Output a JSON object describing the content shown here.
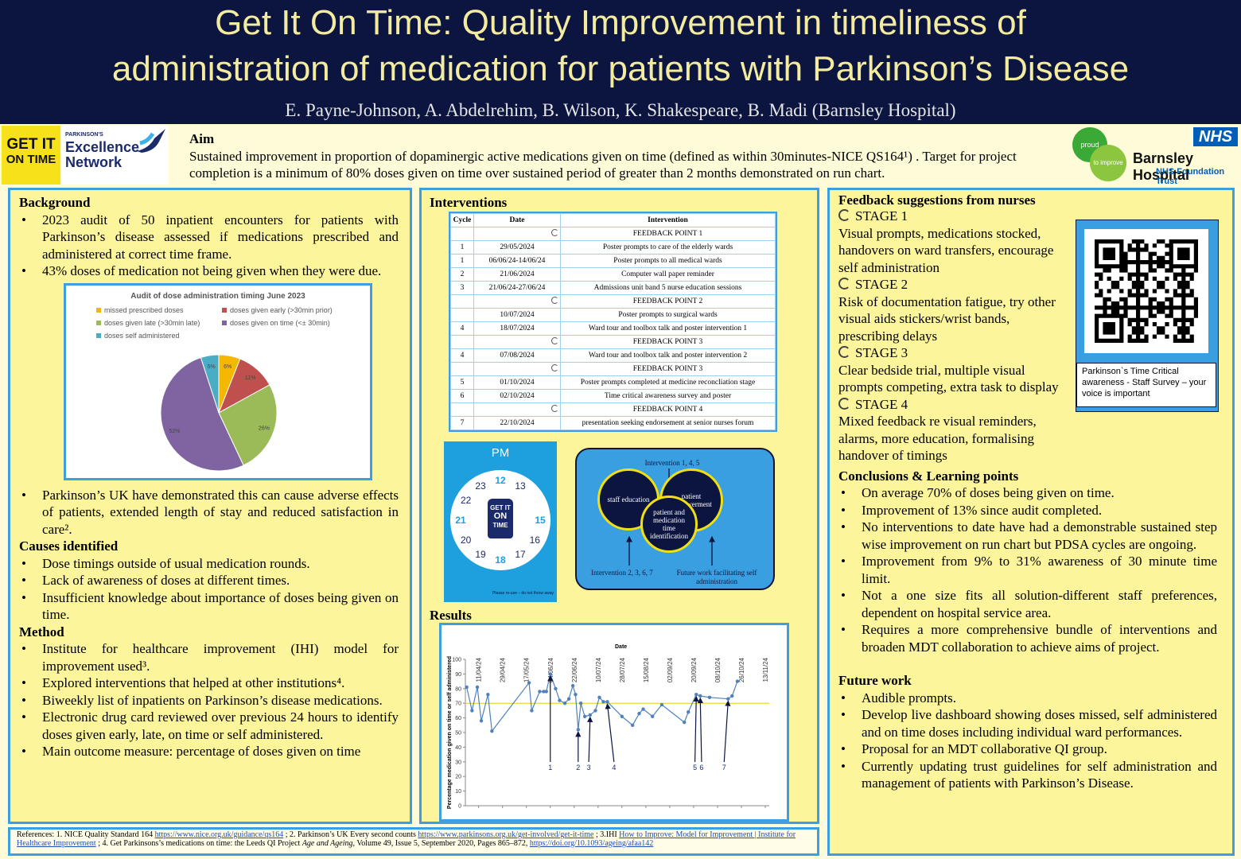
{
  "header": {
    "title_lines": [
      "Get It On Time: Quality Improvement in timeliness of",
      "administration of medication for patients with Parkinson’s Disease"
    ],
    "authors": "E. Payne-Johnson, A. Abdelrehim, B. Wilson, K. Shakespeare, B. Madi (Barnsley Hospital)"
  },
  "logos": {
    "get_it_lines": [
      "GET IT",
      "ON TIME"
    ],
    "pen_top": "PARKINSON'S",
    "pen_lines": [
      "Excellence",
      "Network"
    ],
    "proud": "proud",
    "to_improve": "to improve",
    "nhs": "NHS",
    "hospital": "Barnsley Hospital",
    "trust": "NHS Foundation Trust"
  },
  "aim": {
    "heading": "Aim",
    "text": "Sustained improvement in proportion of dopaminergic active medications given on time (defined as within 30minutes-NICE QS164¹) .  Target for project completion is a minimum of  80% doses given on time over sustained period of  greater than 2 months demonstrated on run chart."
  },
  "background": {
    "heading": "Background",
    "bullets_1": [
      "2023 audit of 50 inpatient encounters for patients with Parkinson’s disease assessed if medications prescribed and administered at correct time frame.",
      "43% doses of medication not being given when they were due."
    ],
    "bullets_2": [
      "Parkinson’s UK have demonstrated this can cause adverse effects of patients, extended length of stay and reduced satisfaction in care²."
    ]
  },
  "causes": {
    "heading": "Causes identified",
    "bullets": [
      "Dose timings outside of usual medication rounds.",
      "Lack of awareness of doses at different times.",
      "Insufficient knowledge about importance of doses being given on time."
    ]
  },
  "method": {
    "heading": "Method",
    "bullets": [
      "Institute for healthcare improvement (IHI) model for improvement used³.",
      "Explored interventions that helped at other institutions⁴.",
      "Biweekly list of inpatients on Parkinson’s disease medications.",
      "Electronic drug card reviewed over previous 24 hours to identify doses given early, late, on time or self administered.",
      "Main outcome measure: percentage of doses given on time"
    ]
  },
  "interventions": {
    "heading": "Interventions",
    "columns": [
      "Cycle",
      "Date",
      "Intervention"
    ],
    "rows": [
      {
        "feedback": "FEEDBACK POINT 1"
      },
      {
        "cycle": "1",
        "date": "29/05/2024",
        "intervention": "Poster prompts to care of the elderly wards"
      },
      {
        "cycle": "1",
        "date": "06/06/24-14/06/24",
        "intervention": "Poster prompts to all medical wards"
      },
      {
        "cycle": "2",
        "date": "21/06/2024",
        "intervention": "Computer wall paper reminder"
      },
      {
        "cycle": "3",
        "date": "21/06/24-27/06/24",
        "intervention": "Admissions unit band 5 nurse education sessions"
      },
      {
        "feedback": "FEEDBACK POINT 2"
      },
      {
        "date": "10/07/2024",
        "intervention": "Poster prompts to surgical wards"
      },
      {
        "cycle": "4",
        "date": "18/07/2024",
        "intervention": "Ward tour and toolbox talk and poster intervention 1"
      },
      {
        "feedback": "FEEDBACK POINT 3"
      },
      {
        "cycle": "4",
        "date": "07/08/2024",
        "intervention": "Ward tour and toolbox talk and poster intervention 2"
      },
      {
        "feedback": "FEEDBACK POINT 3"
      },
      {
        "cycle": "5",
        "date": "01/10/2024",
        "intervention": "Poster prompts completed at medicine reconcliation stage"
      },
      {
        "cycle": "6",
        "date": "02/10/2024",
        "intervention": "Time critical awareness survey and poster"
      },
      {
        "feedback": "FEEDBACK POINT 4"
      },
      {
        "cycle": "7",
        "date": "22/10/2024",
        "intervention": "presentation seeking endorsement at senior nurses forum"
      }
    ]
  },
  "clock": {
    "period": "PM",
    "hours": [
      "12",
      "13",
      "15",
      "16",
      "17",
      "18",
      "19",
      "20",
      "21",
      "22",
      "23"
    ],
    "bottle_lines": [
      "GET IT",
      "ON",
      "TIME"
    ],
    "note": "Please re-use – do not throw away"
  },
  "diagram": {
    "top_label": "Intervention 1, 4, 5",
    "circles": [
      "staff education",
      "patient empowerment",
      "patient and medication time identification"
    ],
    "bottom_left": "Intervention 2, 3, 6, 7",
    "bottom_right": "Future work facilitating self administration"
  },
  "results": {
    "heading": "Results"
  },
  "chart_data": [
    {
      "type": "pie",
      "title": "Audit of dose administration timing June 2023",
      "categories": [
        "missed prescribed doses",
        "doses given early (>30min prior)",
        "doses given late (>30min late)",
        "doses given on time (<± 30min)",
        "doses self administered"
      ],
      "values": [
        6,
        11,
        26,
        52,
        5
      ],
      "value_labels": [
        "6%",
        "11%",
        "26%",
        "52%",
        "5%"
      ],
      "colors": [
        "#f5b800",
        "#c0504d",
        "#9bbb59",
        "#8064a2",
        "#4bacc6"
      ]
    },
    {
      "type": "line",
      "x_label": "Date",
      "y_label": "Percentage medication given on time or self administered",
      "x": [
        "02/04/24",
        "06/04/24",
        "10/04/24",
        "13/04/24",
        "18/04/24",
        "21/04/24",
        "19/05/24",
        "21/05/24",
        "27/05/24",
        "30/05/24",
        "01/06/24",
        "04/06/24",
        "08/06/24",
        "11/06/24",
        "15/06/24",
        "18/06/24",
        "21/06/24",
        "23/06/24",
        "25/06/24",
        "27/06/24",
        "30/06/24",
        "04/07/24",
        "08/07/24",
        "11/07/24",
        "14/07/24",
        "17/07/24",
        "28/07/24",
        "05/08/24",
        "10/08/24",
        "13/08/24",
        "20/08/24",
        "27/08/24",
        "13/09/24",
        "16/09/24",
        "22/09/24",
        "25/09/24",
        "02/10/24",
        "16/10/24",
        "19/10/24",
        "23/10/24"
      ],
      "values": [
        81,
        65,
        81,
        58,
        76,
        51,
        84,
        65,
        78,
        78,
        78,
        90,
        80,
        72,
        70,
        73,
        82,
        76,
        52,
        70,
        61,
        62,
        65,
        74,
        71,
        71,
        61,
        55,
        63,
        66,
        61,
        69,
        57,
        64,
        76,
        75,
        74,
        73,
        75,
        85
      ],
      "color": "#4f81bd",
      "target_line": 70,
      "target_color": "#e8d21a",
      "xlim": [
        "01/04/24",
        "16/11/24"
      ],
      "xticks": [
        "11/04/24",
        "29/04/24",
        "17/05/24",
        "04/06/24",
        "22/06/24",
        "10/07/24",
        "28/07/24",
        "15/08/24",
        "02/09/24",
        "20/09/24",
        "08/10/24",
        "26/10/24",
        "13/11/24"
      ],
      "ylim": [
        0,
        100
      ],
      "yticks": [
        0,
        10,
        20,
        30,
        40,
        50,
        60,
        70,
        80,
        90,
        100
      ],
      "annotations": [
        {
          "label": "1",
          "x": "04/06/24"
        },
        {
          "label": "2",
          "x": "25/06/24"
        },
        {
          "label": "3",
          "x": "03/07/24"
        },
        {
          "label": "4",
          "x": "22/07/24"
        },
        {
          "label": "5",
          "x": "21/09/24"
        },
        {
          "label": "6",
          "x": "26/09/24"
        },
        {
          "label": "7",
          "x": "13/10/24"
        }
      ]
    }
  ],
  "feedback": {
    "heading": "Feedback suggestions from nurses",
    "stages": [
      {
        "label": "STAGE 1",
        "text": "Visual prompts, medications stocked, handovers on ward transfers, encourage self administration"
      },
      {
        "label": "STAGE 2",
        "text": "Risk of documentation fatigue, try other visual aids stickers/wrist bands, prescribing delays"
      },
      {
        "label": "STAGE 3",
        "text": "Clear bedside trial, multiple visual prompts competing, extra task to display"
      },
      {
        "label": "STAGE 4",
        "text": "Mixed feedback re visual reminders, alarms, more education, formalising handover of timings"
      }
    ]
  },
  "survey": {
    "caption": "Parkinson`s  Time Critical awareness - Staff Survey – your voice is important"
  },
  "conclusions": {
    "heading": "Conclusions & Learning points",
    "bullets": [
      "On average 70% of doses being given on time.",
      "Improvement of 13% since audit completed.",
      "No interventions to date have had a demonstrable sustained step wise improvement on run chart but PDSA cycles are ongoing.",
      "Improvement from 9% to 31% awareness of 30 minute time limit.",
      "Not a one size fits all solution-different staff preferences, dependent on hospital service area.",
      "Requires a more comprehensive bundle of interventions and broaden MDT collaboration to achieve aims of project."
    ]
  },
  "future": {
    "heading": "Future work",
    "bullets": [
      "Audible prompts.",
      "Develop live dashboard showing doses missed, self administered and on time doses including individual ward performances.",
      "Proposal for an MDT collaborative QI group.",
      "Currently updating trust guidelines for self administration and management of patients with Parkinson’s Disease."
    ]
  },
  "references": [
    {
      "text": "References: 1. NICE Quality Standard 164 "
    },
    {
      "link": "https://www.nice.org.uk/guidance/qs164"
    },
    {
      "text": " ; 2.  Parkinson’s UK Every second counts "
    },
    {
      "link": "https://www.parkinsons.org.uk/get-involved/get-it-time"
    },
    {
      "text": " ; 3.IHI "
    },
    {
      "link": "How to Improve: Model for Improvement | Institute for Healthcare Improvement"
    },
    {
      "text": " ; 4. Get Parkinsons’s medications on time: the Leeds QI Project "
    },
    {
      "italic": "Age and Ageing"
    },
    {
      "text": ", Volume 49, Issue 5, September 2020, Pages 865–872, "
    },
    {
      "link": "https://doi.org/10.1093/ageing/afaa142"
    }
  ]
}
